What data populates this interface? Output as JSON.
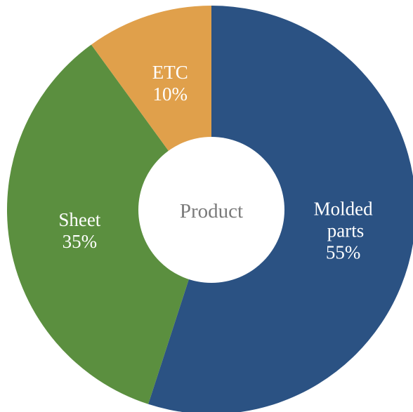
{
  "chart_data": {
    "type": "donut",
    "center_text": "Product",
    "categories": [
      "Molded parts",
      "Sheet",
      "ETC"
    ],
    "values": [
      55,
      35,
      10
    ],
    "value_labels": [
      "55%",
      "35%",
      "10%"
    ],
    "colors": [
      "#2b5283",
      "#5b8f3f",
      "#e0a04b"
    ]
  }
}
